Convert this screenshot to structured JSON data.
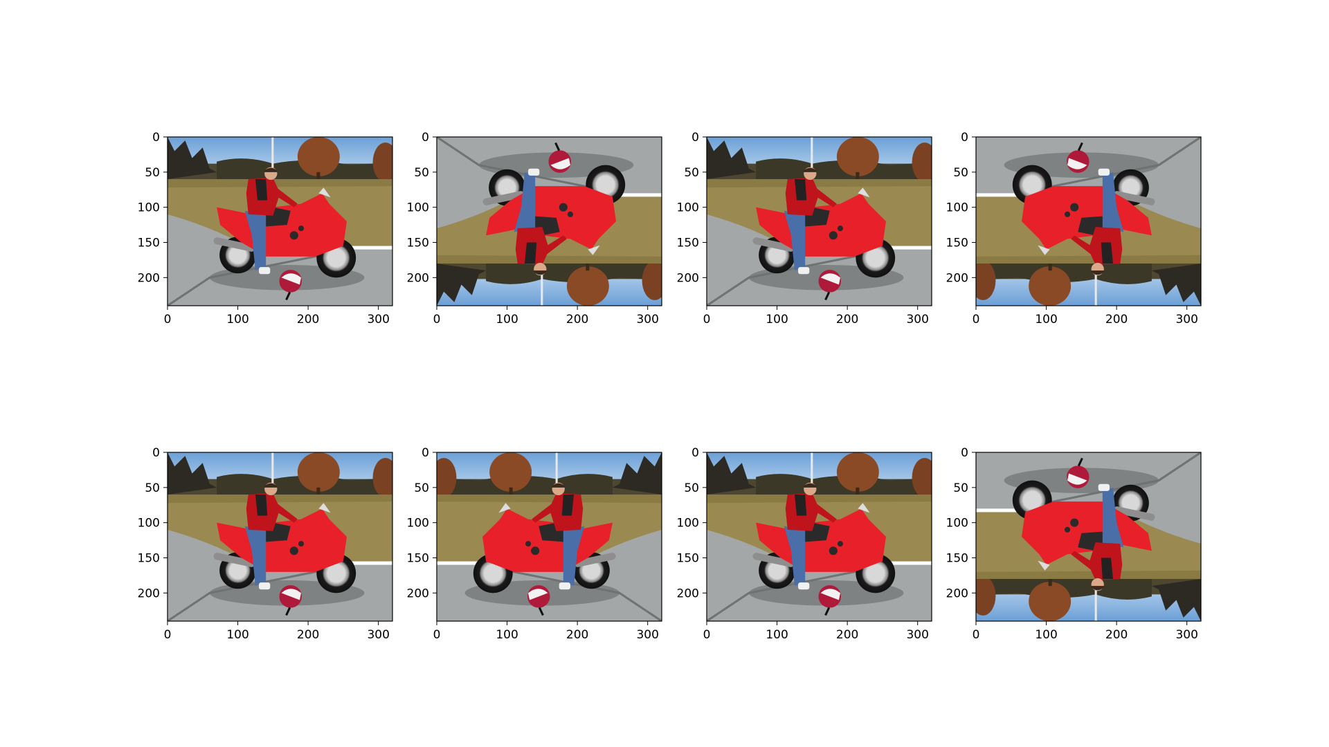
{
  "chart_data": [
    {
      "type": "image",
      "orientation": "original",
      "x_ticks": [
        "0",
        "100",
        "200",
        "300"
      ],
      "y_ticks": [
        "0",
        "50",
        "100",
        "150",
        "200"
      ],
      "xlim": [
        0,
        320
      ],
      "ylim": [
        240,
        0
      ]
    },
    {
      "type": "image",
      "orientation": "vertical-flip",
      "x_ticks": [
        "0",
        "100",
        "200",
        "300"
      ],
      "y_ticks": [
        "0",
        "50",
        "100",
        "150",
        "200"
      ],
      "xlim": [
        0,
        320
      ],
      "ylim": [
        240,
        0
      ]
    },
    {
      "type": "image",
      "orientation": "original",
      "x_ticks": [
        "0",
        "100",
        "200",
        "300"
      ],
      "y_ticks": [
        "0",
        "50",
        "100",
        "150",
        "200"
      ],
      "xlim": [
        0,
        320
      ],
      "ylim": [
        240,
        0
      ]
    },
    {
      "type": "image",
      "orientation": "rotate-180",
      "x_ticks": [
        "0",
        "100",
        "200",
        "300"
      ],
      "y_ticks": [
        "0",
        "50",
        "100",
        "150",
        "200"
      ],
      "xlim": [
        0,
        320
      ],
      "ylim": [
        240,
        0
      ]
    },
    {
      "type": "image",
      "orientation": "original",
      "x_ticks": [
        "0",
        "100",
        "200",
        "300"
      ],
      "y_ticks": [
        "0",
        "50",
        "100",
        "150",
        "200"
      ],
      "xlim": [
        0,
        320
      ],
      "ylim": [
        240,
        0
      ]
    },
    {
      "type": "image",
      "orientation": "horizontal-flip",
      "x_ticks": [
        "0",
        "100",
        "200",
        "300"
      ],
      "y_ticks": [
        "0",
        "50",
        "100",
        "150",
        "200"
      ],
      "xlim": [
        0,
        320
      ],
      "ylim": [
        240,
        0
      ]
    },
    {
      "type": "image",
      "orientation": "original",
      "x_ticks": [
        "0",
        "100",
        "200",
        "300"
      ],
      "y_ticks": [
        "0",
        "50",
        "100",
        "150",
        "200"
      ],
      "xlim": [
        0,
        320
      ],
      "ylim": [
        240,
        0
      ]
    },
    {
      "type": "image",
      "orientation": "rotate-180",
      "x_ticks": [
        "0",
        "100",
        "200",
        "300"
      ],
      "y_ticks": [
        "0",
        "50",
        "100",
        "150",
        "200"
      ],
      "xlim": [
        0,
        320
      ],
      "ylim": [
        240,
        0
      ]
    }
  ],
  "colors": {
    "sky_top": "#6b9fd6",
    "sky_bottom": "#c4dcf2",
    "grass": "#9a8a52",
    "road": "#a3a7a8",
    "trees": "#2c2a22",
    "foliage": "#8a4a26",
    "bike_red": "#e8202a",
    "bike_dark": "#2a2a2a",
    "rider_jeans": "#4a6fa8",
    "rider_jacket": "#c0141c",
    "helmet": "#b01a3a"
  },
  "icons": [
    "motorcycle-photo"
  ]
}
